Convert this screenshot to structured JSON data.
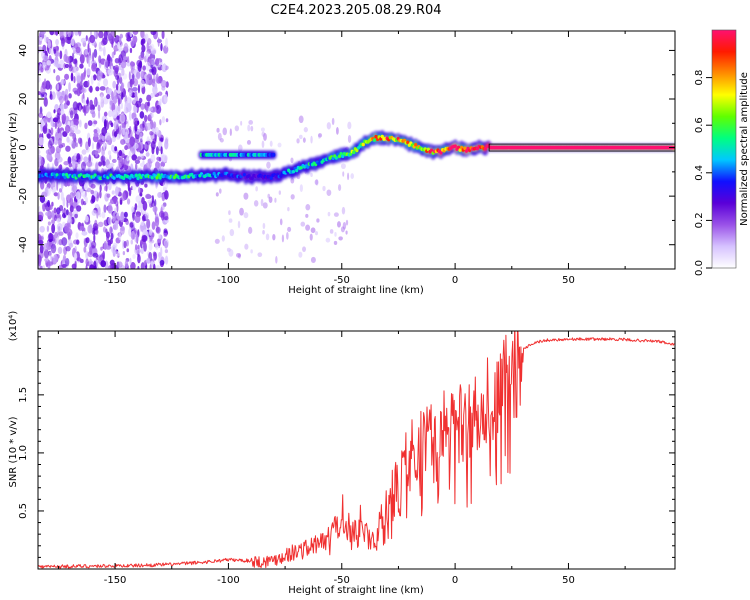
{
  "title": "C2E4.2023.205.08.29.R04",
  "chart_data": [
    {
      "type": "heatmap",
      "name": "spectrogram",
      "xlabel": "Height of straight line (km)",
      "ylabel": "Frequency (Hz)",
      "xlim": [
        -184,
        97
      ],
      "ylim": [
        -50,
        48
      ],
      "xticks": [
        -150,
        -100,
        -50,
        0,
        50
      ],
      "yticks": [
        -40,
        -20,
        0,
        20,
        40
      ],
      "colorbar": {
        "label": "Normalized spectral amplitude",
        "range": [
          0,
          1
        ],
        "ticks": [
          "0.0",
          "0.2",
          "0.4",
          "0.6",
          "0.8"
        ],
        "colors": [
          "#ffffff",
          "#d6c2ff",
          "#9a52e8",
          "#5a00d8",
          "#1010ff",
          "#00c8ff",
          "#00ff80",
          "#60ff00",
          "#ffff00",
          "#ff8c00",
          "#ff1a00",
          "#ff1070"
        ]
      },
      "ridge": {
        "x": [
          -184,
          -160,
          -140,
          -125,
          -115,
          -110,
          -100,
          -90,
          -80,
          -70,
          -60,
          -50,
          -45,
          -40,
          -35,
          -30,
          -25,
          -20,
          -15,
          -10,
          -5,
          0,
          5,
          10,
          20,
          40,
          60,
          97
        ],
        "frequency": [
          -11.5,
          -12,
          -12,
          -12,
          -11.5,
          -11.5,
          -11,
          -12,
          -12,
          -9,
          -6,
          -3,
          -2,
          2,
          4,
          4,
          3,
          1.5,
          0,
          -2,
          -1.5,
          0,
          -1,
          0,
          0,
          0,
          0,
          0
        ],
        "amplitude": [
          0.45,
          0.5,
          0.5,
          0.55,
          0.5,
          0.45,
          0.4,
          0.3,
          0.35,
          0.5,
          0.5,
          0.55,
          0.6,
          0.65,
          0.75,
          0.85,
          0.8,
          0.75,
          0.8,
          0.85,
          0.9,
          0.95,
          1.0,
          1.0,
          1.0,
          1.0,
          1.0,
          1.0
        ]
      },
      "secondary_band": {
        "x": [
          -112,
          -80
        ],
        "frequency": -3,
        "amplitude": 0.45
      },
      "noise_region": {
        "x": [
          -184,
          -127
        ],
        "frequency": [
          -50,
          48
        ],
        "amplitude": 0.15
      }
    },
    {
      "type": "line",
      "name": "snr",
      "xlabel": "Height of straight line (km)",
      "ylabel": "SNR (10 * v/v)",
      "scale_label": "(x10⁴)",
      "color": "#f03030",
      "xlim": [
        -184,
        97
      ],
      "ylim": [
        0,
        2.05
      ],
      "xticks": [
        -150,
        -100,
        -50,
        0,
        50
      ],
      "yticks": [
        "0.5",
        "1.0",
        "1.5"
      ],
      "x": [
        -184,
        -160,
        -140,
        -125,
        -110,
        -100,
        -90,
        -85,
        -80,
        -75,
        -70,
        -65,
        -60,
        -55,
        -50,
        -45,
        -40,
        -35,
        -33,
        -30,
        -27,
        -25,
        -22,
        -20,
        -15,
        -10,
        -5,
        0,
        5,
        10,
        15,
        20,
        25,
        28,
        30,
        35,
        40,
        50,
        60,
        70,
        80,
        90,
        97
      ],
      "snr": [
        0.02,
        0.025,
        0.03,
        0.04,
        0.06,
        0.08,
        0.07,
        0.06,
        0.08,
        0.12,
        0.15,
        0.18,
        0.22,
        0.3,
        0.4,
        0.35,
        0.3,
        0.25,
        0.4,
        0.55,
        0.7,
        0.8,
        0.9,
        1.0,
        1.1,
        1.15,
        1.2,
        1.25,
        1.3,
        1.35,
        1.45,
        1.55,
        1.7,
        1.8,
        1.9,
        1.95,
        1.97,
        1.98,
        1.98,
        1.98,
        1.97,
        1.96,
        1.93
      ]
    }
  ]
}
